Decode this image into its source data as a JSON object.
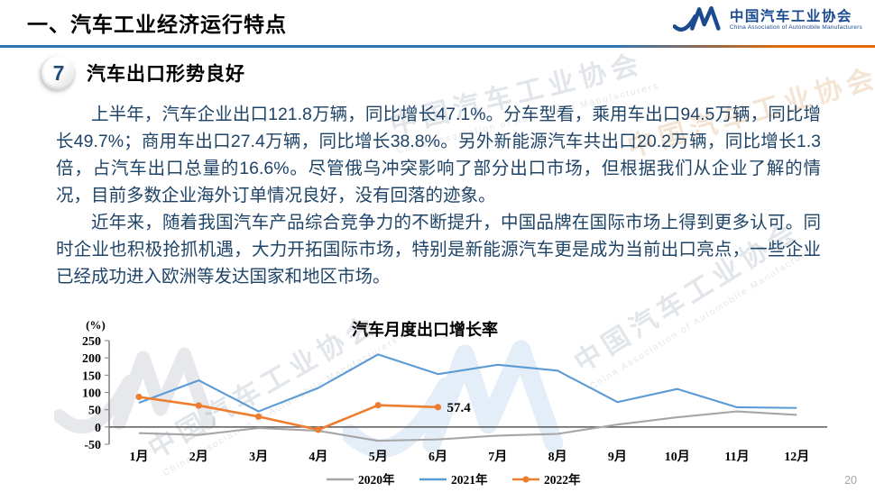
{
  "header": {
    "title": "一、汽车工业经济运行特点",
    "logo_cn": "中国汽车工业协会",
    "logo_en": "China Association of Automobile Manufacturers"
  },
  "section": {
    "number": "7",
    "title": "汽车出口形势良好"
  },
  "paragraphs": [
    "上半年，汽车企业出口121.8万辆，同比增长47.1%。分车型看，乘用车出口94.5万辆，同比增长49.7%；商用车出口27.4万辆，同比增长38.8%。另外新能源汽车共出口20.2万辆，同比增长1.3倍，占汽车出口总量的16.6%。尽管俄乌冲突影响了部分出口市场，但根据我们从企业了解的情况，目前多数企业海外订单情况良好，没有回落的迹象。",
    "近年来，随着我国汽车产品综合竞争力的不断提升，中国品牌在国际市场上得到更多认可。同时企业也积极抢抓机遇，大力开拓国际市场，特别是新能源汽车更是成为当前出口亮点，一些企业已经成功进入欧洲等发达国家和地区市场。"
  ],
  "watermark": {
    "cn": "中国汽车工业协会",
    "en": "China Association of Automobile Manufacturers"
  },
  "page_number": "20",
  "chart_data": {
    "type": "line",
    "title": "汽车月度出口增长率",
    "unit_label": "(%)",
    "categories": [
      "1月",
      "2月",
      "3月",
      "4月",
      "5月",
      "6月",
      "7月",
      "8月",
      "9月",
      "10月",
      "11月",
      "12月"
    ],
    "yticks": [
      250,
      200,
      150,
      100,
      50,
      0,
      -50
    ],
    "ylim": [
      -50,
      250
    ],
    "grid": false,
    "legend_position": "bottom",
    "series": [
      {
        "name": "2020年",
        "color": "#a6a6a6",
        "marker": false,
        "values": [
          -18,
          -23,
          -3,
          -11,
          -40,
          -36,
          -25,
          -20,
          7,
          28,
          45,
          35
        ]
      },
      {
        "name": "2021年",
        "color": "#5b9bd5",
        "marker": false,
        "values": [
          70,
          135,
          45,
          113,
          210,
          153,
          180,
          163,
          72,
          110,
          57,
          55
        ]
      },
      {
        "name": "2022年",
        "color": "#ed7d31",
        "marker": true,
        "values": [
          87,
          62,
          30,
          -8,
          63,
          57.4
        ]
      }
    ],
    "annotation": {
      "text": "57.4",
      "series": "2022年",
      "month_index": 5,
      "value": 57.4
    }
  }
}
